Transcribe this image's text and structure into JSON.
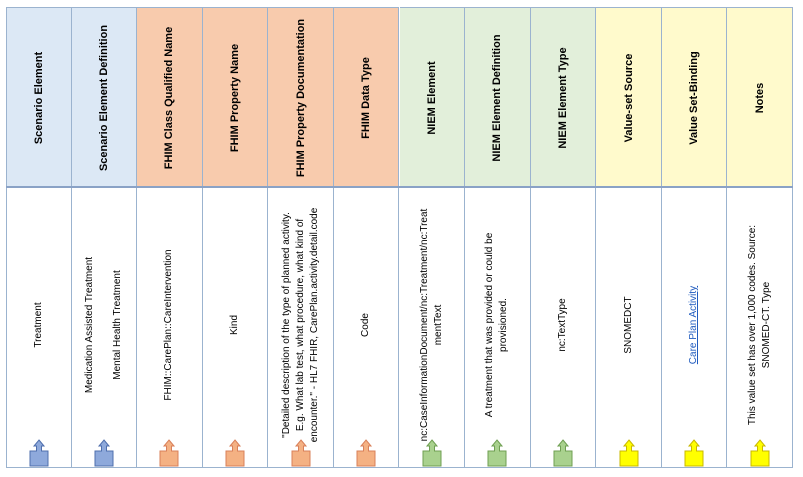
{
  "colors": {
    "scenario_header": "#dce8f5",
    "fhim_header": "#f8cbad",
    "niem_header": "#e2efda",
    "valueset_header": "#fffacc",
    "grid": "#9bb3cf",
    "link": "#1f5bbf"
  },
  "columns": [
    {
      "header": "Scenario Element",
      "body": [
        "Treatment"
      ],
      "group": "scenario",
      "arrow_color": "#8ea9db",
      "arrow_stroke": "#4f6fad"
    },
    {
      "header": "Scenario Element Definition",
      "body": [
        "Medication Assisted Treatment",
        "",
        "Mental Health Treatment"
      ],
      "group": "scenario",
      "arrow_color": "#8ea9db",
      "arrow_stroke": "#4f6fad"
    },
    {
      "header": "FHIM Class Qualified Name",
      "body": [
        "FHIM::CarePlan::CareIntervention"
      ],
      "group": "fhim",
      "arrow_color": "#f4b183",
      "arrow_stroke": "#d9805a"
    },
    {
      "header": "FHIM Property Name",
      "body": [
        "Kind"
      ],
      "group": "fhim",
      "arrow_color": "#f4b183",
      "arrow_stroke": "#d9805a"
    },
    {
      "header": "FHIM Property Documentation",
      "body": [
        "\"Detailed description of the type of planned activity.",
        "E.g.  What lab test, what procedure, what kind of",
        "encounter.\" - HL7 FHIR, CarePlan.activity.detail.code"
      ],
      "group": "fhim",
      "arrow_color": "#f4b183",
      "arrow_stroke": "#d9805a"
    },
    {
      "header": "FHIM Data Type",
      "body": [
        "Code"
      ],
      "group": "fhim",
      "arrow_color": "#f4b183",
      "arrow_stroke": "#d9805a"
    },
    {
      "header": "NIEM Element",
      "body": [
        "nc:CaseInformationDocument/nc:Treatment/nc:Treat",
        "mentText"
      ],
      "group": "niem",
      "arrow_color": "#a9d18e",
      "arrow_stroke": "#6f9f52"
    },
    {
      "header": "NIEM Element Definition",
      "body": [
        "A treatment that was provided or could be",
        "provisioned."
      ],
      "group": "niem",
      "arrow_color": "#a9d18e",
      "arrow_stroke": "#6f9f52"
    },
    {
      "header": "NIEM Element Type",
      "body": [
        "nc:TextType"
      ],
      "group": "niem",
      "arrow_color": "#a9d18e",
      "arrow_stroke": "#6f9f52"
    },
    {
      "header": "Value-set Source",
      "body": [
        "SNOMEDCT"
      ],
      "group": "valueset",
      "arrow_color": "#ffff00",
      "arrow_stroke": "#c9b800"
    },
    {
      "header": "Value Set-Binding",
      "body": [
        "Care Plan Activity"
      ],
      "group": "valueset",
      "is_link": true,
      "arrow_color": "#ffff00",
      "arrow_stroke": "#c9b800"
    },
    {
      "header": "Notes",
      "body": [
        "This value set has over 1,000 codes.  Source:",
        "SNOMED-CT. Type"
      ],
      "group": "valueset",
      "arrow_color": "#ffff00",
      "arrow_stroke": "#c9b800"
    }
  ]
}
